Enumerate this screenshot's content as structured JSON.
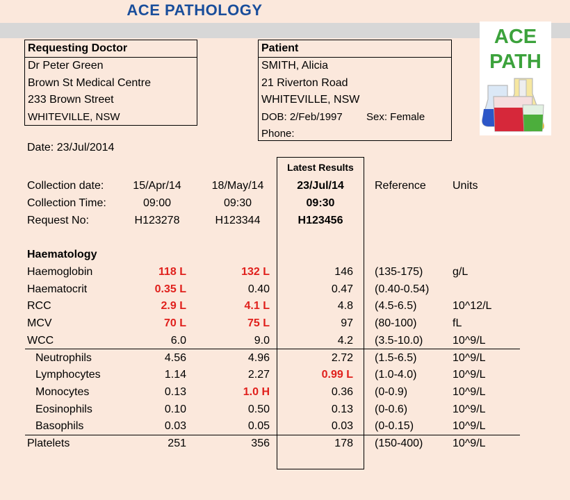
{
  "header": {
    "title": "ACE PATHOLOGY"
  },
  "logo": {
    "line1": "ACE",
    "line2": "PATH"
  },
  "doctor": {
    "heading": "Requesting Doctor",
    "lines": [
      "Dr Peter Green",
      "Brown St Medical Centre",
      "233 Brown Street",
      "WHITEVILLE, NSW"
    ]
  },
  "patient": {
    "heading": "Patient",
    "name": "SMITH, Alicia",
    "address1": "21 Riverton Road",
    "address2": "WHITEVILLE, NSW",
    "dob": "DOB: 2/Feb/1997",
    "sex": "Sex: Female",
    "phone": "Phone:"
  },
  "report_date": "Date: 23/Jul/2014",
  "latest_label": "Latest Results",
  "columns": {
    "reference": "Reference",
    "units": "Units"
  },
  "meta_rows": [
    {
      "label": "Collection date:",
      "v1": "15/Apr/14",
      "v2": "18/May/14",
      "v3": "23/Jul/14"
    },
    {
      "label": "Collection Time:",
      "v1": "09:00",
      "v2": "09:30",
      "v3": "09:30"
    },
    {
      "label": "Request No:",
      "v1": "H123278",
      "v2": "H123344",
      "v3": "H123456"
    }
  ],
  "section_title": "Haematology",
  "results": [
    {
      "label": "Haemoglobin",
      "v1": "118 L",
      "f1": true,
      "v2": "132 L",
      "f2": true,
      "v3": "146",
      "f3": false,
      "ref": "(135-175)",
      "unit": "g/L"
    },
    {
      "label": "Haematocrit",
      "v1": "0.35 L",
      "f1": true,
      "v2": "0.40",
      "f2": false,
      "v3": "0.47",
      "f3": false,
      "ref": "(0.40-0.54)",
      "unit": ""
    },
    {
      "label": "RCC",
      "v1": "2.9 L",
      "f1": true,
      "v2": "4.1 L",
      "f2": true,
      "v3": "4.8",
      "f3": false,
      "ref": "(4.5-6.5)",
      "unit": "10^12/L"
    },
    {
      "label": "MCV",
      "v1": "70 L",
      "f1": true,
      "v2": "75 L",
      "f2": true,
      "v3": "97",
      "f3": false,
      "ref": "(80-100)",
      "unit": "fL"
    },
    {
      "label": "WCC",
      "v1": "6.0",
      "f1": false,
      "v2": "9.0",
      "f2": false,
      "v3": "4.2",
      "f3": false,
      "ref": "(3.5-10.0)",
      "unit": "10^9/L"
    },
    {
      "label": "Neutrophils",
      "indent": true,
      "v1": "4.56",
      "f1": false,
      "v2": "4.96",
      "f2": false,
      "v3": "2.72",
      "f3": false,
      "ref": "(1.5-6.5)",
      "unit": "10^9/L"
    },
    {
      "label": "Lymphocytes",
      "indent": true,
      "v1": "1.14",
      "f1": false,
      "v2": "2.27",
      "f2": false,
      "v3": "0.99 L",
      "f3": true,
      "ref": "(1.0-4.0)",
      "unit": "10^9/L"
    },
    {
      "label": "Monocytes",
      "indent": true,
      "v1": "0.13",
      "f1": false,
      "v2": "1.0 H",
      "f2": true,
      "v3": "0.36",
      "f3": false,
      "ref": "(0-0.9)",
      "unit": "10^9/L"
    },
    {
      "label": "Eosinophils",
      "indent": true,
      "v1": "0.10",
      "f1": false,
      "v2": "0.50",
      "f2": false,
      "v3": "0.13",
      "f3": false,
      "ref": "(0-0.6)",
      "unit": "10^9/L"
    },
    {
      "label": "Basophils",
      "indent": true,
      "v1": "0.03",
      "f1": false,
      "v2": "0.05",
      "f2": false,
      "v3": "0.03",
      "f3": false,
      "ref": "(0-0.15)",
      "unit": "10^9/L"
    },
    {
      "label": "Platelets",
      "v1": "251",
      "f1": false,
      "v2": "356",
      "f2": false,
      "v3": "178",
      "f3": false,
      "ref": "(150-400)",
      "unit": "10^9/L"
    }
  ],
  "colors": {
    "title": "#1a4e9b",
    "flag": "#e0201c",
    "logo_text": "#3ca23c",
    "background": "#fbe8dc"
  }
}
